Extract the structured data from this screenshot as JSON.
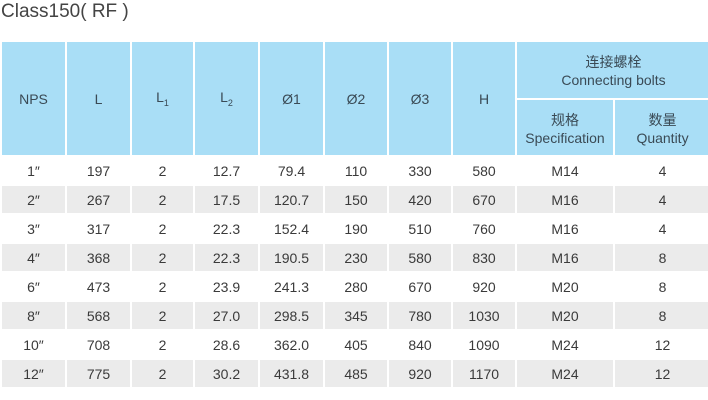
{
  "title": "Class150( RF )",
  "headers": {
    "nps": "NPS",
    "l": "L",
    "l1": "L",
    "l1_sub": "1",
    "l2": "L",
    "l2_sub": "2",
    "d1": "Ø1",
    "d2": "Ø2",
    "d3": "Ø3",
    "h": "H",
    "bolts_zh": "连接螺栓",
    "bolts_en": "Connecting bolts",
    "spec_zh": "规格",
    "spec_en": "Specification",
    "qty_zh": "数量",
    "qty_en": "Quantity"
  },
  "rows": [
    [
      "1″",
      "197",
      "2",
      "12.7",
      "79.4",
      "110",
      "330",
      "580",
      "M14",
      "4"
    ],
    [
      "2″",
      "267",
      "2",
      "17.5",
      "120.7",
      "150",
      "420",
      "670",
      "M16",
      "4"
    ],
    [
      "3″",
      "317",
      "2",
      "22.3",
      "152.4",
      "190",
      "510",
      "760",
      "M16",
      "4"
    ],
    [
      "4″",
      "368",
      "2",
      "22.3",
      "190.5",
      "230",
      "580",
      "830",
      "M16",
      "8"
    ],
    [
      "6″",
      "473",
      "2",
      "23.9",
      "241.3",
      "280",
      "670",
      "920",
      "M20",
      "8"
    ],
    [
      "8″",
      "568",
      "2",
      "27.0",
      "298.5",
      "345",
      "780",
      "1030",
      "M20",
      "8"
    ],
    [
      "10″",
      "708",
      "2",
      "28.6",
      "362.0",
      "405",
      "840",
      "1090",
      "M24",
      "12"
    ],
    [
      "12″",
      "775",
      "2",
      "30.2",
      "431.8",
      "485",
      "920",
      "1170",
      "M24",
      "12"
    ]
  ]
}
